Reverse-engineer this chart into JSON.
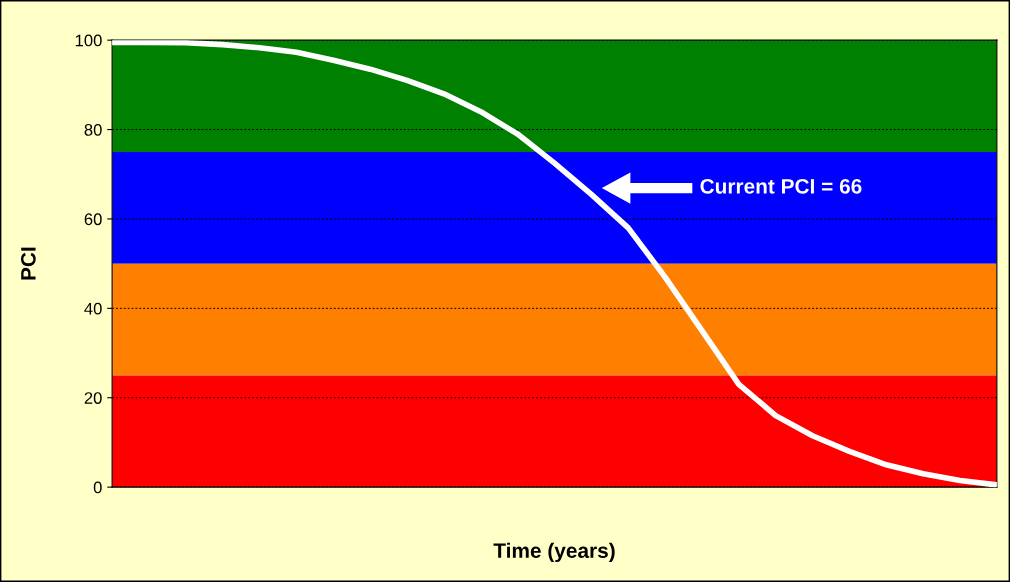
{
  "chart_data": {
    "type": "line",
    "xlabel": "Time (years)",
    "ylabel": "PCI",
    "categories": [
      null,
      null,
      null,
      null,
      null,
      null,
      null,
      null,
      null,
      null,
      null,
      null,
      null,
      null,
      null,
      null,
      null,
      null,
      null,
      null,
      null,
      null,
      null,
      null,
      null
    ],
    "series": [
      {
        "color": "#ffffff",
        "values": [
          99.5,
          99.5,
          99.4,
          99,
          98.3,
          97.3,
          95.5,
          93.5,
          91,
          88,
          84,
          79,
          72.5,
          65.5,
          58,
          47,
          35,
          23,
          16,
          11.5,
          8,
          5,
          3,
          1.5,
          0.5
        ]
      }
    ],
    "ylim": [
      0,
      100
    ],
    "yticks": [
      0,
      20,
      40,
      60,
      80,
      100
    ],
    "grid": "y",
    "marker": "none",
    "line_style": "solid",
    "tick_labels": "y",
    "bands": [
      {
        "axis": "y",
        "from": 75,
        "to": 100,
        "color": "#008000"
      },
      {
        "axis": "y",
        "from": 50,
        "to": 75,
        "color": "#0000ff"
      },
      {
        "axis": "y",
        "from": 25,
        "to": 50,
        "color": "#ff8000"
      },
      {
        "axis": "y",
        "from": 0,
        "to": 25,
        "color": "#ff0000"
      }
    ],
    "annotations": [
      "Current PCI = 66"
    ]
  }
}
